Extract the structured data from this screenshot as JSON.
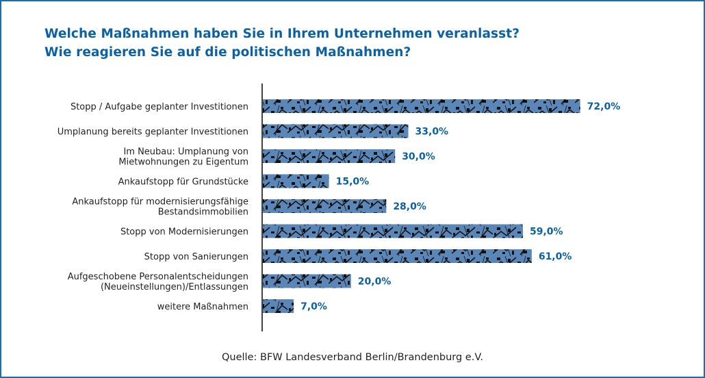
{
  "colors": {
    "frame": "#1a6fa3",
    "title": "#0a61a5",
    "bar": "#5b86b8",
    "bar_texture": "#1a1a1a",
    "value_label": "#0a61a5",
    "category_label": "#222222",
    "axis": "#111111"
  },
  "title_lines": [
    "Welche Maßnahmen haben Sie in Ihrem Unternehmen veranlasst?",
    "Wie reagieren Sie auf die politischen Maßnahmen?"
  ],
  "source": "Quelle: BFW Landesverband Berlin/Brandenburg e.V.",
  "chart_data": {
    "type": "bar",
    "orientation": "horizontal",
    "title": "Welche Maßnahmen haben Sie in Ihrem Unternehmen veranlasst? Wie reagieren Sie auf die politischen Maßnahmen?",
    "xlabel": "",
    "ylabel": "",
    "unit": "%",
    "xlim": [
      0,
      80
    ],
    "grid": false,
    "categories": [
      [
        "Stopp / Aufgabe geplanter Investitionen"
      ],
      [
        "Umplanung bereits geplanter Investitionen"
      ],
      [
        "Im Neubau: Umplanung von",
        "Mietwohnungen zu Eigentum"
      ],
      [
        "Ankaufstopp für Grundstücke"
      ],
      [
        "Ankaufstopp für modernisierungsfähige",
        "Bestandsimmobilien"
      ],
      [
        "Stopp von Modernisierungen"
      ],
      [
        "Stopp von Sanierungen"
      ],
      [
        "Aufgeschobene Personalentscheidungen",
        "(Neueinstellungen)/Entlassungen"
      ],
      [
        "weitere Maßnahmen"
      ]
    ],
    "values": [
      72.0,
      33.0,
      30.0,
      15.0,
      28.0,
      59.0,
      61.0,
      20.0,
      7.0
    ],
    "value_labels": [
      "72,0%",
      "33,0%",
      "30,0%",
      "15,0%",
      "28,0%",
      "59,0%",
      "61,0%",
      "20,0%",
      "7,0%"
    ],
    "source": "Quelle: BFW Landesverband Berlin/Brandenburg e.V."
  }
}
